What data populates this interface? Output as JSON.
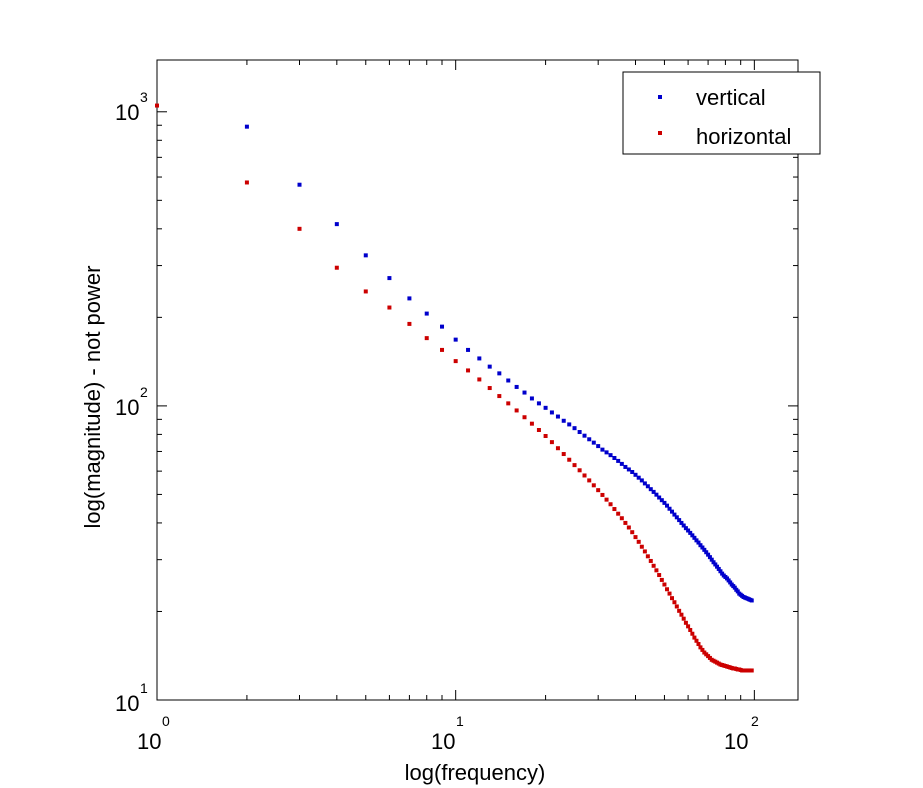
{
  "chart_data": {
    "type": "scatter",
    "title": "",
    "xlabel": "log(frequency)",
    "ylabel": "log(magnitude) - not power",
    "xscale": "log",
    "yscale": "log",
    "xlim": [
      1,
      140
    ],
    "ylim": [
      10,
      1500
    ],
    "x_ticks": [
      {
        "base": "10",
        "exp": "0"
      },
      {
        "base": "10",
        "exp": "1"
      },
      {
        "base": "10",
        "exp": "2"
      }
    ],
    "y_ticks": [
      {
        "base": "10",
        "exp": "1"
      },
      {
        "base": "10",
        "exp": "2"
      },
      {
        "base": "10",
        "exp": "3"
      }
    ],
    "grid": false,
    "legend_position": "top-right",
    "series": [
      {
        "name": "vertical",
        "color": "#0000cc",
        "x_start": 2,
        "x_end": 98,
        "values": [
          890,
          565,
          415,
          325,
          272,
          232,
          206,
          186,
          168,
          155,
          145,
          136,
          129,
          122,
          116,
          111,
          106,
          102,
          98.5,
          95,
          92,
          89,
          86.5,
          84,
          81.5,
          79.2,
          77,
          75,
          73,
          71,
          69.5,
          68,
          66.5,
          65,
          63.5,
          62,
          60.8,
          59.6,
          58.3,
          57,
          55.8,
          54.5,
          53.3,
          52.1,
          51,
          49.9,
          48.8,
          47.8,
          46.8,
          45.8,
          44.7,
          43.7,
          42.7,
          41.8,
          40.9,
          40,
          39.2,
          38.4,
          37.7,
          37,
          36.3,
          35.6,
          34.9,
          34.3,
          33.6,
          33,
          32.4,
          31.8,
          31.2,
          30.6,
          30,
          29.4,
          28.9,
          28.4,
          27.9,
          27.4,
          26.9,
          26.5,
          26.2,
          25.9,
          25.5,
          25.1,
          24.7,
          24.4,
          24.1,
          23.7,
          23.4,
          23,
          22.8,
          22.6,
          22.4,
          22.3,
          22.2,
          22.1,
          22,
          21.9,
          21.8
        ]
      },
      {
        "name": "horizontal",
        "color": "#cc0000",
        "x_start": 2,
        "x_end": 98,
        "values": [
          575,
          400,
          295,
          245,
          216,
          190,
          170,
          155,
          142,
          132,
          123,
          115,
          108,
          102,
          96.5,
          91.5,
          87,
          82.8,
          79,
          75.3,
          71.8,
          68.6,
          65.6,
          62.9,
          60.4,
          58,
          55.8,
          53.7,
          51.7,
          49.8,
          48,
          46.3,
          44.6,
          43,
          41.5,
          40,
          38.6,
          37.2,
          35.8,
          34.5,
          33.2,
          32,
          30.8,
          29.7,
          28.6,
          27.6,
          26.6,
          25.6,
          24.7,
          23.8,
          23,
          22.2,
          21.5,
          20.8,
          20.1,
          19.5,
          18.9,
          18.3,
          17.8,
          17.3,
          16.8,
          16.3,
          15.9,
          15.5,
          15.1,
          14.8,
          14.5,
          14.3,
          14.1,
          13.9,
          13.7,
          13.6,
          13.5,
          13.4,
          13.3,
          13.2,
          13.15,
          13.1,
          13.05,
          13,
          12.95,
          12.9,
          12.85,
          12.8,
          12.8,
          12.75,
          12.7,
          12.7,
          12.65,
          12.6,
          12.6,
          12.6,
          12.6,
          12.6,
          12.6,
          12.6,
          12.6
        ]
      }
    ],
    "extra_points": [
      {
        "series": "horizontal",
        "x": 1,
        "y": 1050
      }
    ]
  }
}
